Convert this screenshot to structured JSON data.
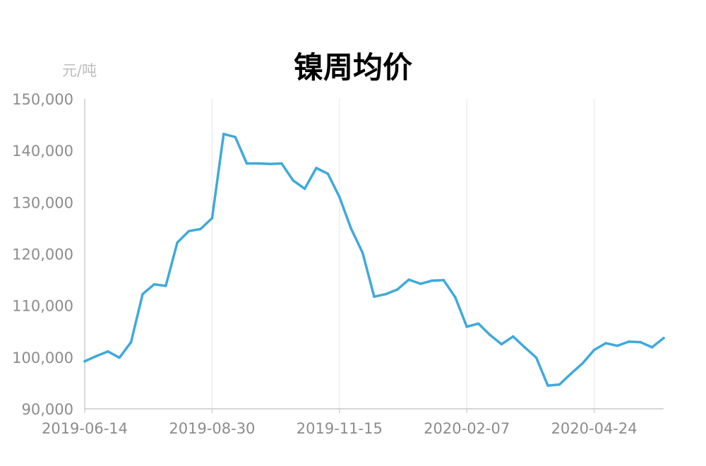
{
  "chart_data": {
    "type": "line",
    "title": "镍周均价",
    "ylabel": "元/吨",
    "xlabel": "",
    "ylim": [
      90000,
      150000
    ],
    "yticks": [
      90000,
      100000,
      110000,
      120000,
      130000,
      140000,
      150000
    ],
    "ytick_labels": [
      "90,000",
      "100,000",
      "110,000",
      "120,000",
      "130,000",
      "140,000",
      "150,000"
    ],
    "xtick_labels": [
      "2019-06-14",
      "2019-08-30",
      "2019-11-15",
      "2020-02-07",
      "2020-04-24"
    ],
    "grid": "vertical",
    "colors": {
      "line": "#3fa9dc",
      "grid": "#e6e6e6",
      "axis": "#bfbfbf",
      "tick_text": "#8c8c8c",
      "unit_text": "#bdbdbd"
    },
    "series": [
      {
        "values": [
          99200,
          100200,
          101100,
          99900,
          102900,
          112200,
          114100,
          113800,
          122200,
          124400,
          124800,
          126900,
          143200,
          142600,
          137500,
          137500,
          137400,
          137500,
          134200,
          132600,
          136600,
          135500,
          131000,
          124900,
          120200,
          111700,
          112200,
          113100,
          115000,
          114200,
          114800,
          114900,
          111600,
          105900,
          106500,
          104300,
          102500,
          104000,
          101900,
          99900,
          94500,
          94700,
          96800,
          98800,
          101400,
          102700,
          102200,
          103000,
          102900,
          101900,
          103700
        ]
      }
    ]
  }
}
